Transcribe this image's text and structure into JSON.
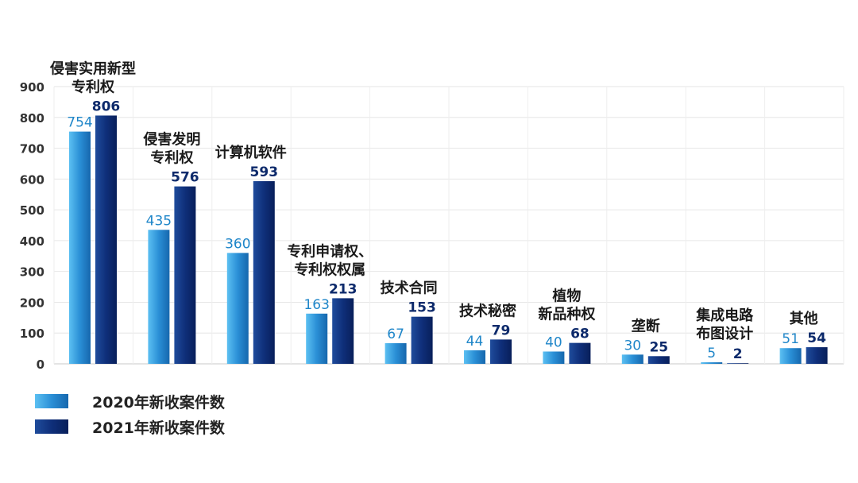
{
  "chart_data": {
    "type": "bar",
    "title": "",
    "xlabel": "",
    "ylabel": "",
    "ylim": [
      0,
      900
    ],
    "yticks": [
      0,
      100,
      200,
      300,
      400,
      500,
      600,
      700,
      800,
      900
    ],
    "grid": true,
    "legend_position": "bottom-left",
    "categories": [
      [
        "侵害实用新型",
        "专利权"
      ],
      [
        "侵害发明",
        "专利权"
      ],
      [
        "计算机软件"
      ],
      [
        "专利申请权、",
        "专利权权属"
      ],
      [
        "技术合同"
      ],
      [
        "技术秘密"
      ],
      [
        "植物",
        "新品种权"
      ],
      [
        "垄断"
      ],
      [
        "集成电路",
        "布图设计"
      ],
      [
        "其他"
      ]
    ],
    "series": [
      {
        "name": "2020年新收案件数",
        "color": "#2a8fd6",
        "label_color": "#1f86c9",
        "values": [
          754,
          435,
          360,
          163,
          67,
          44,
          40,
          30,
          5,
          51
        ]
      },
      {
        "name": "2021年新收案件数",
        "color": "#0f2f7a",
        "label_color": "#0d2a6b",
        "values": [
          806,
          576,
          593,
          213,
          153,
          79,
          68,
          25,
          2,
          54
        ]
      }
    ]
  }
}
